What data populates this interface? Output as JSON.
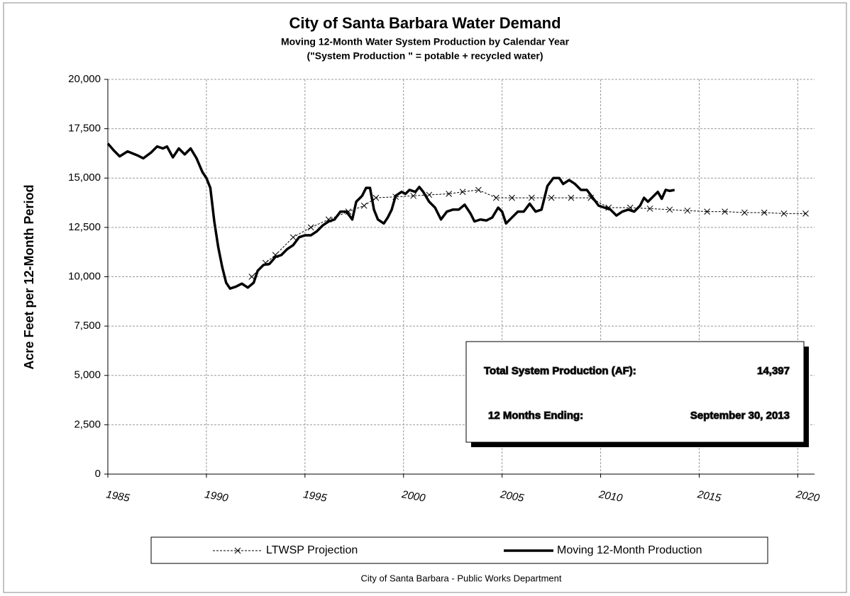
{
  "chart_data": {
    "type": "line",
    "title": "City of Santa Barbara Water Demand",
    "subtitle": "Moving 12-Month Water System Production by Calendar Year",
    "subtitle2": "(\"System Production \" = potable + recycled water)",
    "y_label": "Acre Feet per 12-Month Period",
    "footer": "City of Santa Barbara - Public Works Department",
    "xlim": [
      1985,
      2020.85
    ],
    "xticks": [
      1985,
      1990,
      1995,
      2000,
      2005,
      2010,
      2015,
      2020
    ],
    "ylim": [
      0,
      20000
    ],
    "yticks": [
      0,
      {
        "value": 2500,
        "label": "2,500"
      },
      {
        "value": 5000,
        "label": "5,000"
      },
      {
        "value": 7500,
        "label": "7,500"
      },
      {
        "value": 10000,
        "label": "10,000"
      },
      {
        "value": 12500,
        "label": "12,500"
      },
      {
        "value": 15000,
        "label": "15,000"
      },
      {
        "value": 17500,
        "label": "17,500"
      },
      {
        "value": 20000,
        "label": "20,000"
      }
    ],
    "grid": true,
    "series": [
      {
        "name": "LTWSP Projection",
        "color": "#000000",
        "style": "dashed",
        "marker": "x",
        "x": [
          1992.3,
          1993.0,
          1993.5,
          1994.4,
          1995.3,
          1996.2,
          1997.2,
          1998.0,
          1998.6,
          1999.6,
          2000.5,
          2001.3,
          2002.3,
          2003.0,
          2003.8,
          2004.7,
          2005.5,
          2006.5,
          2007.5,
          2008.5,
          2009.5,
          2010.4,
          2011.5,
          2012.5,
          2013.5,
          2014.4,
          2015.4,
          2016.3,
          2017.3,
          2018.3,
          2019.3,
          2020.4
        ],
        "values": [
          10000,
          10700,
          11100,
          12000,
          12500,
          12900,
          13300,
          13600,
          14000,
          14050,
          14100,
          14150,
          14200,
          14300,
          14400,
          14000,
          14000,
          14000,
          14000,
          14000,
          14000,
          13500,
          13500,
          13450,
          13400,
          13350,
          13300,
          13300,
          13250,
          13250,
          13200,
          13200
        ]
      },
      {
        "name": "Moving 12-Month Production",
        "color": "#000000",
        "style": "solid",
        "x": [
          1985.0,
          1985.3,
          1985.6,
          1986.0,
          1986.5,
          1986.8,
          1987.2,
          1987.5,
          1987.8,
          1988.0,
          1988.3,
          1988.6,
          1988.9,
          1989.2,
          1989.5,
          1989.8,
          1990.0,
          1990.2,
          1990.4,
          1990.6,
          1990.8,
          1991.0,
          1991.2,
          1991.5,
          1991.8,
          1992.1,
          1992.4,
          1992.6,
          1992.9,
          1993.2,
          1993.5,
          1993.8,
          1994.1,
          1994.4,
          1994.7,
          1995.0,
          1995.3,
          1995.6,
          1995.9,
          1996.2,
          1996.5,
          1996.8,
          1997.1,
          1997.4,
          1997.6,
          1997.9,
          1998.1,
          1998.3,
          1998.5,
          1998.7,
          1999.0,
          1999.2,
          1999.4,
          1999.6,
          1999.9,
          2000.1,
          2000.3,
          2000.6,
          2000.8,
          2001.0,
          2001.3,
          2001.6,
          2001.9,
          2002.2,
          2002.5,
          2002.8,
          2003.1,
          2003.4,
          2003.6,
          2003.9,
          2004.2,
          2004.5,
          2004.8,
          2005.0,
          2005.2,
          2005.5,
          2005.8,
          2006.1,
          2006.4,
          2006.7,
          2007.0,
          2007.3,
          2007.6,
          2007.9,
          2008.1,
          2008.4,
          2008.7,
          2009.0,
          2009.3,
          2009.6,
          2009.9,
          2010.2,
          2010.5,
          2010.8,
          2011.1,
          2011.4,
          2011.7,
          2012.0,
          2012.2,
          2012.4,
          2012.7,
          2012.9,
          2013.1,
          2013.3,
          2013.5,
          2013.75
        ],
        "values": [
          16750,
          16400,
          16100,
          16350,
          16150,
          16000,
          16300,
          16600,
          16500,
          16600,
          16050,
          16500,
          16200,
          16500,
          16000,
          15300,
          15000,
          14500,
          12800,
          11500,
          10500,
          9700,
          9400,
          9500,
          9650,
          9450,
          9700,
          10300,
          10600,
          10650,
          11000,
          11100,
          11400,
          11600,
          12000,
          12100,
          12100,
          12300,
          12600,
          12800,
          12900,
          13300,
          13300,
          12900,
          13800,
          14100,
          14500,
          14500,
          13400,
          12900,
          12700,
          13000,
          13400,
          14100,
          14300,
          14200,
          14400,
          14300,
          14550,
          14300,
          13800,
          13500,
          12900,
          13300,
          13400,
          13400,
          13650,
          13200,
          12800,
          12900,
          12850,
          13000,
          13500,
          13300,
          12700,
          13000,
          13300,
          13300,
          13700,
          13300,
          13400,
          14600,
          15000,
          15000,
          14700,
          14900,
          14700,
          14400,
          14400,
          14000,
          13600,
          13500,
          13400,
          13100,
          13300,
          13400,
          13300,
          13600,
          14000,
          13800,
          14100,
          14300,
          13950,
          14400,
          14350,
          14397
        ]
      }
    ],
    "annotations": [
      {
        "label": "Total System Production (AF):",
        "text": "14,397"
      },
      {
        "label": "12 Months Ending:",
        "text": "September 30, 2013"
      }
    ]
  }
}
